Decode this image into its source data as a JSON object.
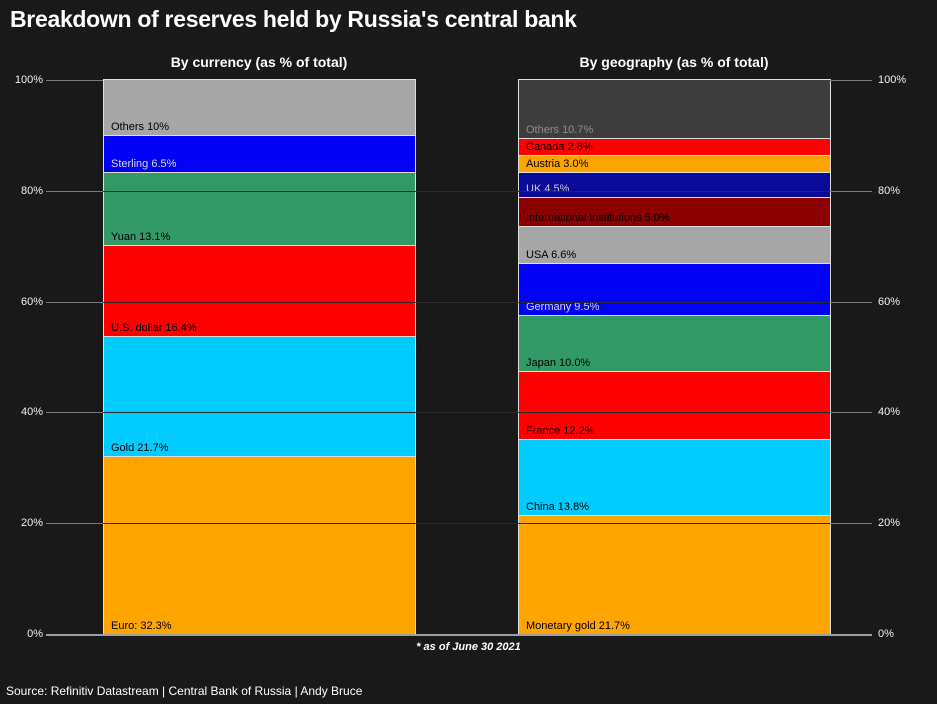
{
  "title": "Breakdown of reserves held by Russia's central bank",
  "footnote": "* as of June 30 2021",
  "source": "Source: Refinitiv Datastream | Central Bank of Russia | Andy Bruce",
  "colors": {
    "background": "#191919",
    "text": "#ffffff",
    "gridline_faint": "#2b2b2b",
    "tick": "#7a7a7a",
    "zero_line": "#9e9e9e",
    "segment_border": "#dedede"
  },
  "y_axis": {
    "ticks": [
      {
        "label": "100%",
        "value": 100
      },
      {
        "label": "80%",
        "value": 80
      },
      {
        "label": "60%",
        "value": 60
      },
      {
        "label": "40%",
        "value": 40
      },
      {
        "label": "20%",
        "value": 20
      },
      {
        "label": "0%",
        "value": 0
      }
    ]
  },
  "chart_data": [
    {
      "type": "bar",
      "stacked": true,
      "title": "By currency (as % of total)",
      "unit": "%",
      "ylim": [
        0,
        100
      ],
      "grid": true,
      "segment_order": "bottom-to-top",
      "segments": [
        {
          "category": "Euro",
          "label": "Euro: 32.3%",
          "value": 32.3,
          "color": "#FFA500",
          "text_color": "#000000"
        },
        {
          "category": "Gold",
          "label": "Gold 21.7%",
          "value": 21.7,
          "color": "#00CCFF",
          "text_color": "#000000"
        },
        {
          "category": "U.S. dollar",
          "label": "U.S. dollar 16.4%",
          "value": 16.4,
          "color": "#FF0000",
          "text_color": "#000000"
        },
        {
          "category": "Yuan",
          "label": "Yuan 13.1%",
          "value": 13.1,
          "color": "#339966",
          "text_color": "#000000"
        },
        {
          "category": "Sterling",
          "label": "Sterling 6.5%",
          "value": 6.5,
          "color": "#0000F5",
          "text_color": "#D9D9D9"
        },
        {
          "category": "Others",
          "label": "Others 10%",
          "value": 10.0,
          "color": "#A6A6A6",
          "text_color": "#000000"
        }
      ]
    },
    {
      "type": "bar",
      "stacked": true,
      "title": "By geography (as % of total)",
      "unit": "%",
      "ylim": [
        0,
        100
      ],
      "grid": true,
      "segment_order": "bottom-to-top",
      "segments": [
        {
          "category": "Monetary gold",
          "label": "Monetary gold 21.7%",
          "value": 21.7,
          "color": "#FFA500",
          "text_color": "#000000"
        },
        {
          "category": "China",
          "label": "China 13.8%",
          "value": 13.8,
          "color": "#00CCFF",
          "text_color": "#000000"
        },
        {
          "category": "France",
          "label": "France 12.2%",
          "value": 12.2,
          "color": "#FF0000",
          "text_color": "#000000"
        },
        {
          "category": "Japan",
          "label": "Japan 10.0%",
          "value": 10.0,
          "color": "#339966",
          "text_color": "#000000"
        },
        {
          "category": "Germany",
          "label": "Germany 9.5%",
          "value": 9.5,
          "color": "#0000F5",
          "text_color": "#D9D9D9"
        },
        {
          "category": "USA",
          "label": "USA 6.6%",
          "value": 6.6,
          "color": "#A6A6A6",
          "text_color": "#000000"
        },
        {
          "category": "International institutions",
          "label": "International institutions 5.0%",
          "value": 5.0,
          "color": "#8B0000",
          "text_color": "#000000"
        },
        {
          "category": "UK",
          "label": "UK 4.5%",
          "value": 4.5,
          "color": "#0A0A99",
          "text_color": "#C9C9C9"
        },
        {
          "category": "Austria",
          "label": "Austria 3.0%",
          "value": 3.0,
          "color": "#FFA500",
          "text_color": "#000000"
        },
        {
          "category": "Canada",
          "label": "Canada 2.8%",
          "value": 2.8,
          "color": "#FF0000",
          "text_color": "#000000"
        },
        {
          "category": "Others",
          "label": "Others 10.7%",
          "value": 10.7,
          "color": "#3D3D3D",
          "text_color": "#8C8C8C"
        }
      ]
    }
  ]
}
